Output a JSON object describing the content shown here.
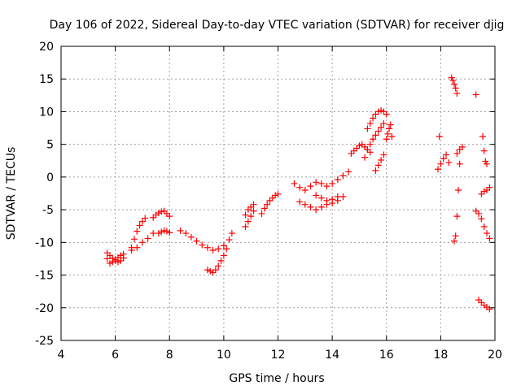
{
  "chart_data": {
    "type": "scatter",
    "title": "Day 106 of 2022, Sidereal Day-to-day VTEC variation (SDTVAR) for receiver djig",
    "xlabel": "GPS time / hours",
    "ylabel": "SDTVAR / TECUs",
    "xlim": [
      4,
      20
    ],
    "ylim": [
      -25,
      20
    ],
    "xticks": [
      4,
      6,
      8,
      10,
      12,
      14,
      16,
      18,
      20
    ],
    "yticks": [
      -25,
      -20,
      -15,
      -10,
      -5,
      0,
      5,
      10,
      15,
      20
    ],
    "grid": true,
    "marker": "+",
    "color": "#ff0000",
    "series": [
      {
        "name": "segment-1",
        "x": [
          5.7,
          5.8,
          5.9,
          6.0,
          6.1,
          6.2,
          6.3
        ],
        "y": [
          -12.5,
          -13.2,
          -13.0,
          -12.6,
          -12.3,
          -12.0,
          -11.8
        ]
      },
      {
        "name": "segment-2",
        "x": [
          5.7,
          5.8,
          5.9,
          6.0,
          6.1,
          6.2,
          6.3
        ],
        "y": [
          -11.6,
          -12.0,
          -12.4,
          -12.8,
          -13.0,
          -12.8,
          -12.4
        ]
      },
      {
        "name": "segment-3",
        "x": [
          6.6,
          6.7,
          6.8,
          6.9,
          7.0,
          7.1
        ],
        "y": [
          -10.8,
          -9.5,
          -8.3,
          -7.4,
          -6.8,
          -6.3
        ]
      },
      {
        "name": "segment-4",
        "x": [
          6.6,
          6.8,
          7.0,
          7.2,
          7.4
        ],
        "y": [
          -11.2,
          -10.8,
          -10.0,
          -9.4,
          -8.6
        ]
      },
      {
        "name": "segment-5",
        "x": [
          7.4,
          7.5,
          7.6,
          7.7,
          7.8,
          7.9,
          8.0
        ],
        "y": [
          -6.2,
          -5.8,
          -5.5,
          -5.3,
          -5.2,
          -5.6,
          -6.0
        ]
      },
      {
        "name": "segment-6",
        "x": [
          7.6,
          7.7,
          7.8,
          7.9,
          8.0
        ],
        "y": [
          -8.6,
          -8.4,
          -8.2,
          -8.3,
          -8.5
        ]
      },
      {
        "name": "segment-7",
        "x": [
          8.4,
          8.6,
          8.8,
          9.0,
          9.2,
          9.4,
          9.6,
          9.8,
          10.0
        ],
        "y": [
          -8.2,
          -8.6,
          -9.2,
          -9.8,
          -10.4,
          -10.8,
          -11.2,
          -11.0,
          -10.5
        ]
      },
      {
        "name": "segment-8",
        "x": [
          9.4,
          9.5,
          9.6,
          9.7,
          9.8,
          9.9,
          10.0,
          10.1,
          10.2,
          10.3
        ],
        "y": [
          -14.2,
          -14.4,
          -14.6,
          -14.2,
          -13.6,
          -12.8,
          -12.0,
          -11.0,
          -9.6,
          -8.6
        ]
      },
      {
        "name": "segment-9",
        "x": [
          10.8,
          10.9,
          11.0,
          11.1
        ],
        "y": [
          -7.6,
          -6.8,
          -6.0,
          -5.2
        ]
      },
      {
        "name": "segment-10",
        "x": [
          10.8,
          10.9,
          11.0,
          11.1
        ],
        "y": [
          -5.8,
          -5.0,
          -4.6,
          -4.2
        ]
      },
      {
        "name": "segment-11",
        "x": [
          11.4,
          11.5,
          11.6,
          11.7,
          11.8,
          11.9,
          12.0
        ],
        "y": [
          -5.6,
          -4.8,
          -4.2,
          -3.6,
          -3.2,
          -2.8,
          -2.6
        ]
      },
      {
        "name": "segment-12",
        "x": [
          12.6,
          12.8,
          13.0,
          13.2,
          13.4,
          13.6,
          13.8,
          14.0,
          14.2,
          14.4,
          14.6
        ],
        "y": [
          -1.0,
          -1.6,
          -2.0,
          -1.4,
          -0.8,
          -1.0,
          -1.4,
          -1.0,
          -0.4,
          0.2,
          0.8
        ]
      },
      {
        "name": "segment-13",
        "x": [
          12.8,
          13.0,
          13.2,
          13.4,
          13.6,
          13.8,
          14.0,
          14.2,
          14.4
        ],
        "y": [
          -3.8,
          -4.2,
          -4.6,
          -5.0,
          -4.6,
          -4.2,
          -4.0,
          -3.6,
          -3.0
        ]
      },
      {
        "name": "segment-14",
        "x": [
          13.4,
          13.6,
          13.8,
          14.0,
          14.2
        ],
        "y": [
          -2.8,
          -3.2,
          -3.6,
          -3.4,
          -3.0
        ]
      },
      {
        "name": "segment-15",
        "x": [
          14.7,
          14.8,
          14.9,
          15.0,
          15.1,
          15.2,
          15.3,
          15.4
        ],
        "y": [
          3.6,
          4.0,
          4.4,
          4.8,
          5.0,
          4.6,
          4.2,
          3.8
        ]
      },
      {
        "name": "segment-16",
        "x": [
          15.2,
          15.3,
          15.4,
          15.5,
          15.6,
          15.7,
          15.8,
          15.9
        ],
        "y": [
          3.0,
          4.2,
          5.0,
          5.8,
          6.4,
          7.0,
          7.6,
          8.2
        ]
      },
      {
        "name": "segment-17",
        "x": [
          15.3,
          15.4,
          15.5,
          15.6,
          15.7,
          15.8,
          15.9,
          16.0
        ],
        "y": [
          7.4,
          8.2,
          9.0,
          9.6,
          10.0,
          10.2,
          10.0,
          9.6
        ]
      },
      {
        "name": "segment-18",
        "x": [
          15.6,
          15.7,
          15.8,
          15.9
        ],
        "y": [
          1.0,
          1.8,
          2.6,
          3.4
        ]
      },
      {
        "name": "segment-19",
        "x": [
          16.0,
          16.05,
          16.1,
          16.15,
          16.2
        ],
        "y": [
          5.8,
          6.6,
          7.4,
          8.0,
          6.2
        ]
      },
      {
        "name": "segment-20",
        "x": [
          17.9,
          18.0,
          18.1,
          18.2,
          18.3
        ],
        "y": [
          1.2,
          2.0,
          2.8,
          3.4,
          2.2
        ]
      },
      {
        "name": "segment-21",
        "x": [
          18.4,
          18.45,
          18.5,
          18.55,
          18.6
        ],
        "y": [
          15.2,
          14.8,
          14.2,
          13.6,
          12.8
        ]
      },
      {
        "name": "segment-22",
        "x": [
          18.5,
          18.55,
          18.6,
          18.65,
          18.7
        ],
        "y": [
          -9.8,
          -9.0,
          -6.0,
          -2.0,
          2.0
        ]
      },
      {
        "name": "segment-23",
        "x": [
          18.6,
          18.7,
          18.8
        ],
        "y": [
          3.6,
          4.2,
          4.6
        ]
      },
      {
        "name": "segment-24",
        "x": [
          19.3,
          19.4,
          19.5,
          19.6,
          19.7,
          19.8
        ],
        "y": [
          -5.2,
          -5.6,
          -6.4,
          -7.6,
          -8.6,
          -9.4
        ]
      },
      {
        "name": "segment-25",
        "x": [
          19.5,
          19.6,
          19.7,
          19.8
        ],
        "y": [
          -2.6,
          -2.2,
          -2.0,
          -1.6
        ]
      },
      {
        "name": "segment-26",
        "x": [
          19.55,
          19.6,
          19.65,
          19.7
        ],
        "y": [
          6.2,
          4.0,
          2.4,
          2.0
        ]
      },
      {
        "name": "segment-27",
        "x": [
          19.4,
          19.5,
          19.6,
          19.7,
          19.8
        ],
        "y": [
          -18.8,
          -19.2,
          -19.6,
          -19.9,
          -20.2
        ]
      },
      {
        "name": "isolated",
        "x": [
          19.3,
          17.95
        ],
        "y": [
          12.6,
          6.2
        ]
      }
    ]
  }
}
